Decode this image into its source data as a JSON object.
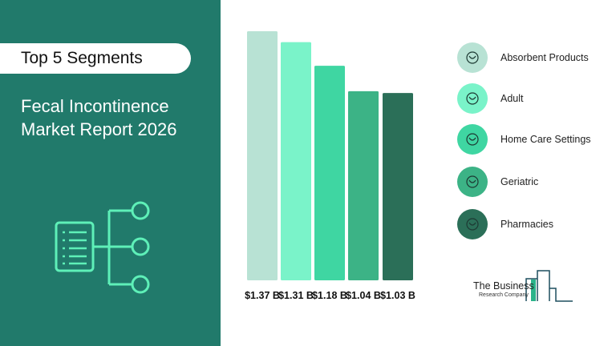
{
  "header": {
    "pill": "Top 5 Segments",
    "title_line1": "Fecal Incontinence",
    "title_line2": "Market Report 2026"
  },
  "chart_data": {
    "type": "bar",
    "categories": [
      "Absorbent Products",
      "Adult",
      "Home Care Settings",
      "Geriatric",
      "Pharmacies"
    ],
    "values": [
      1.37,
      1.31,
      1.18,
      1.04,
      1.03
    ],
    "value_labels": [
      "$1.37 B",
      "$1.31 B",
      "$1.18 B",
      "$1.04 B",
      "$1.03 B"
    ],
    "colors": [
      "#b8e2d4",
      "#7af3c9",
      "#3fd6a2",
      "#3cb386",
      "#2b6f58"
    ],
    "ylim": [
      0,
      1.37
    ]
  },
  "legend": [
    {
      "label": "Absorbent Products",
      "icon": "kidney-bladder-icon",
      "color": "#b8e2d4"
    },
    {
      "label": "Adult",
      "icon": "bladder-icon",
      "color": "#7af3c9"
    },
    {
      "label": "Home Care Settings",
      "icon": "uterus-icon",
      "color": "#3fd6a2"
    },
    {
      "label": "Geriatric",
      "icon": "document-scroll-icon",
      "color": "#3cb386"
    },
    {
      "label": "Pharmacies",
      "icon": "pharmacy-store-icon",
      "color": "#2b6f58"
    }
  ],
  "logo": {
    "line1": "The Business",
    "line2": "Research Company"
  }
}
